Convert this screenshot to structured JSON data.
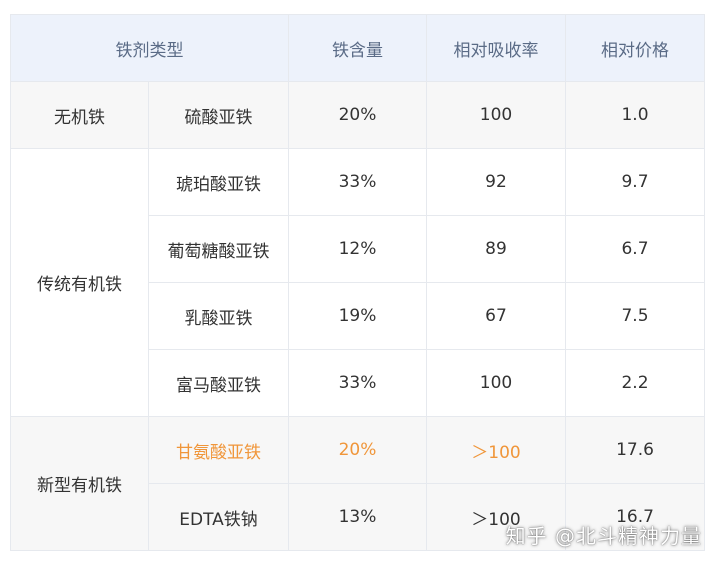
{
  "header": {
    "type_label": "铁剂类型",
    "iron_content_label": "铁含量",
    "absorption_label": "相对吸收率",
    "price_label": "相对价格"
  },
  "groups": [
    {
      "name": "无机铁",
      "rows": [
        {
          "name": "硫酸亚铁",
          "iron": "20%",
          "absorption": "100",
          "price": "1.0"
        }
      ]
    },
    {
      "name": "传统有机铁",
      "rows": [
        {
          "name": "琥珀酸亚铁",
          "iron": "33%",
          "absorption": "92",
          "price": "9.7"
        },
        {
          "name": "葡萄糖酸亚铁",
          "iron": "12%",
          "absorption": "89",
          "price": "6.7"
        },
        {
          "name": "乳酸亚铁",
          "iron": "19%",
          "absorption": "67",
          "price": "7.5"
        },
        {
          "name": "富马酸亚铁",
          "iron": "33%",
          "absorption": "100",
          "price": "2.2"
        }
      ]
    },
    {
      "name": "新型有机铁",
      "rows": [
        {
          "name": "甘氨酸亚铁",
          "iron": "20%",
          "absorption": "＞100",
          "price": "17.6"
        },
        {
          "name": "EDTA铁钠",
          "iron": "13%",
          "absorption": "＞100",
          "price": "16.7"
        }
      ]
    }
  ],
  "watermark": "知乎 @北斗精神力量",
  "colors": {
    "header_bg": "#edf2fb",
    "header_text": "#5a6b86",
    "highlight": "#f0963a",
    "border": "#e6e9ee"
  }
}
